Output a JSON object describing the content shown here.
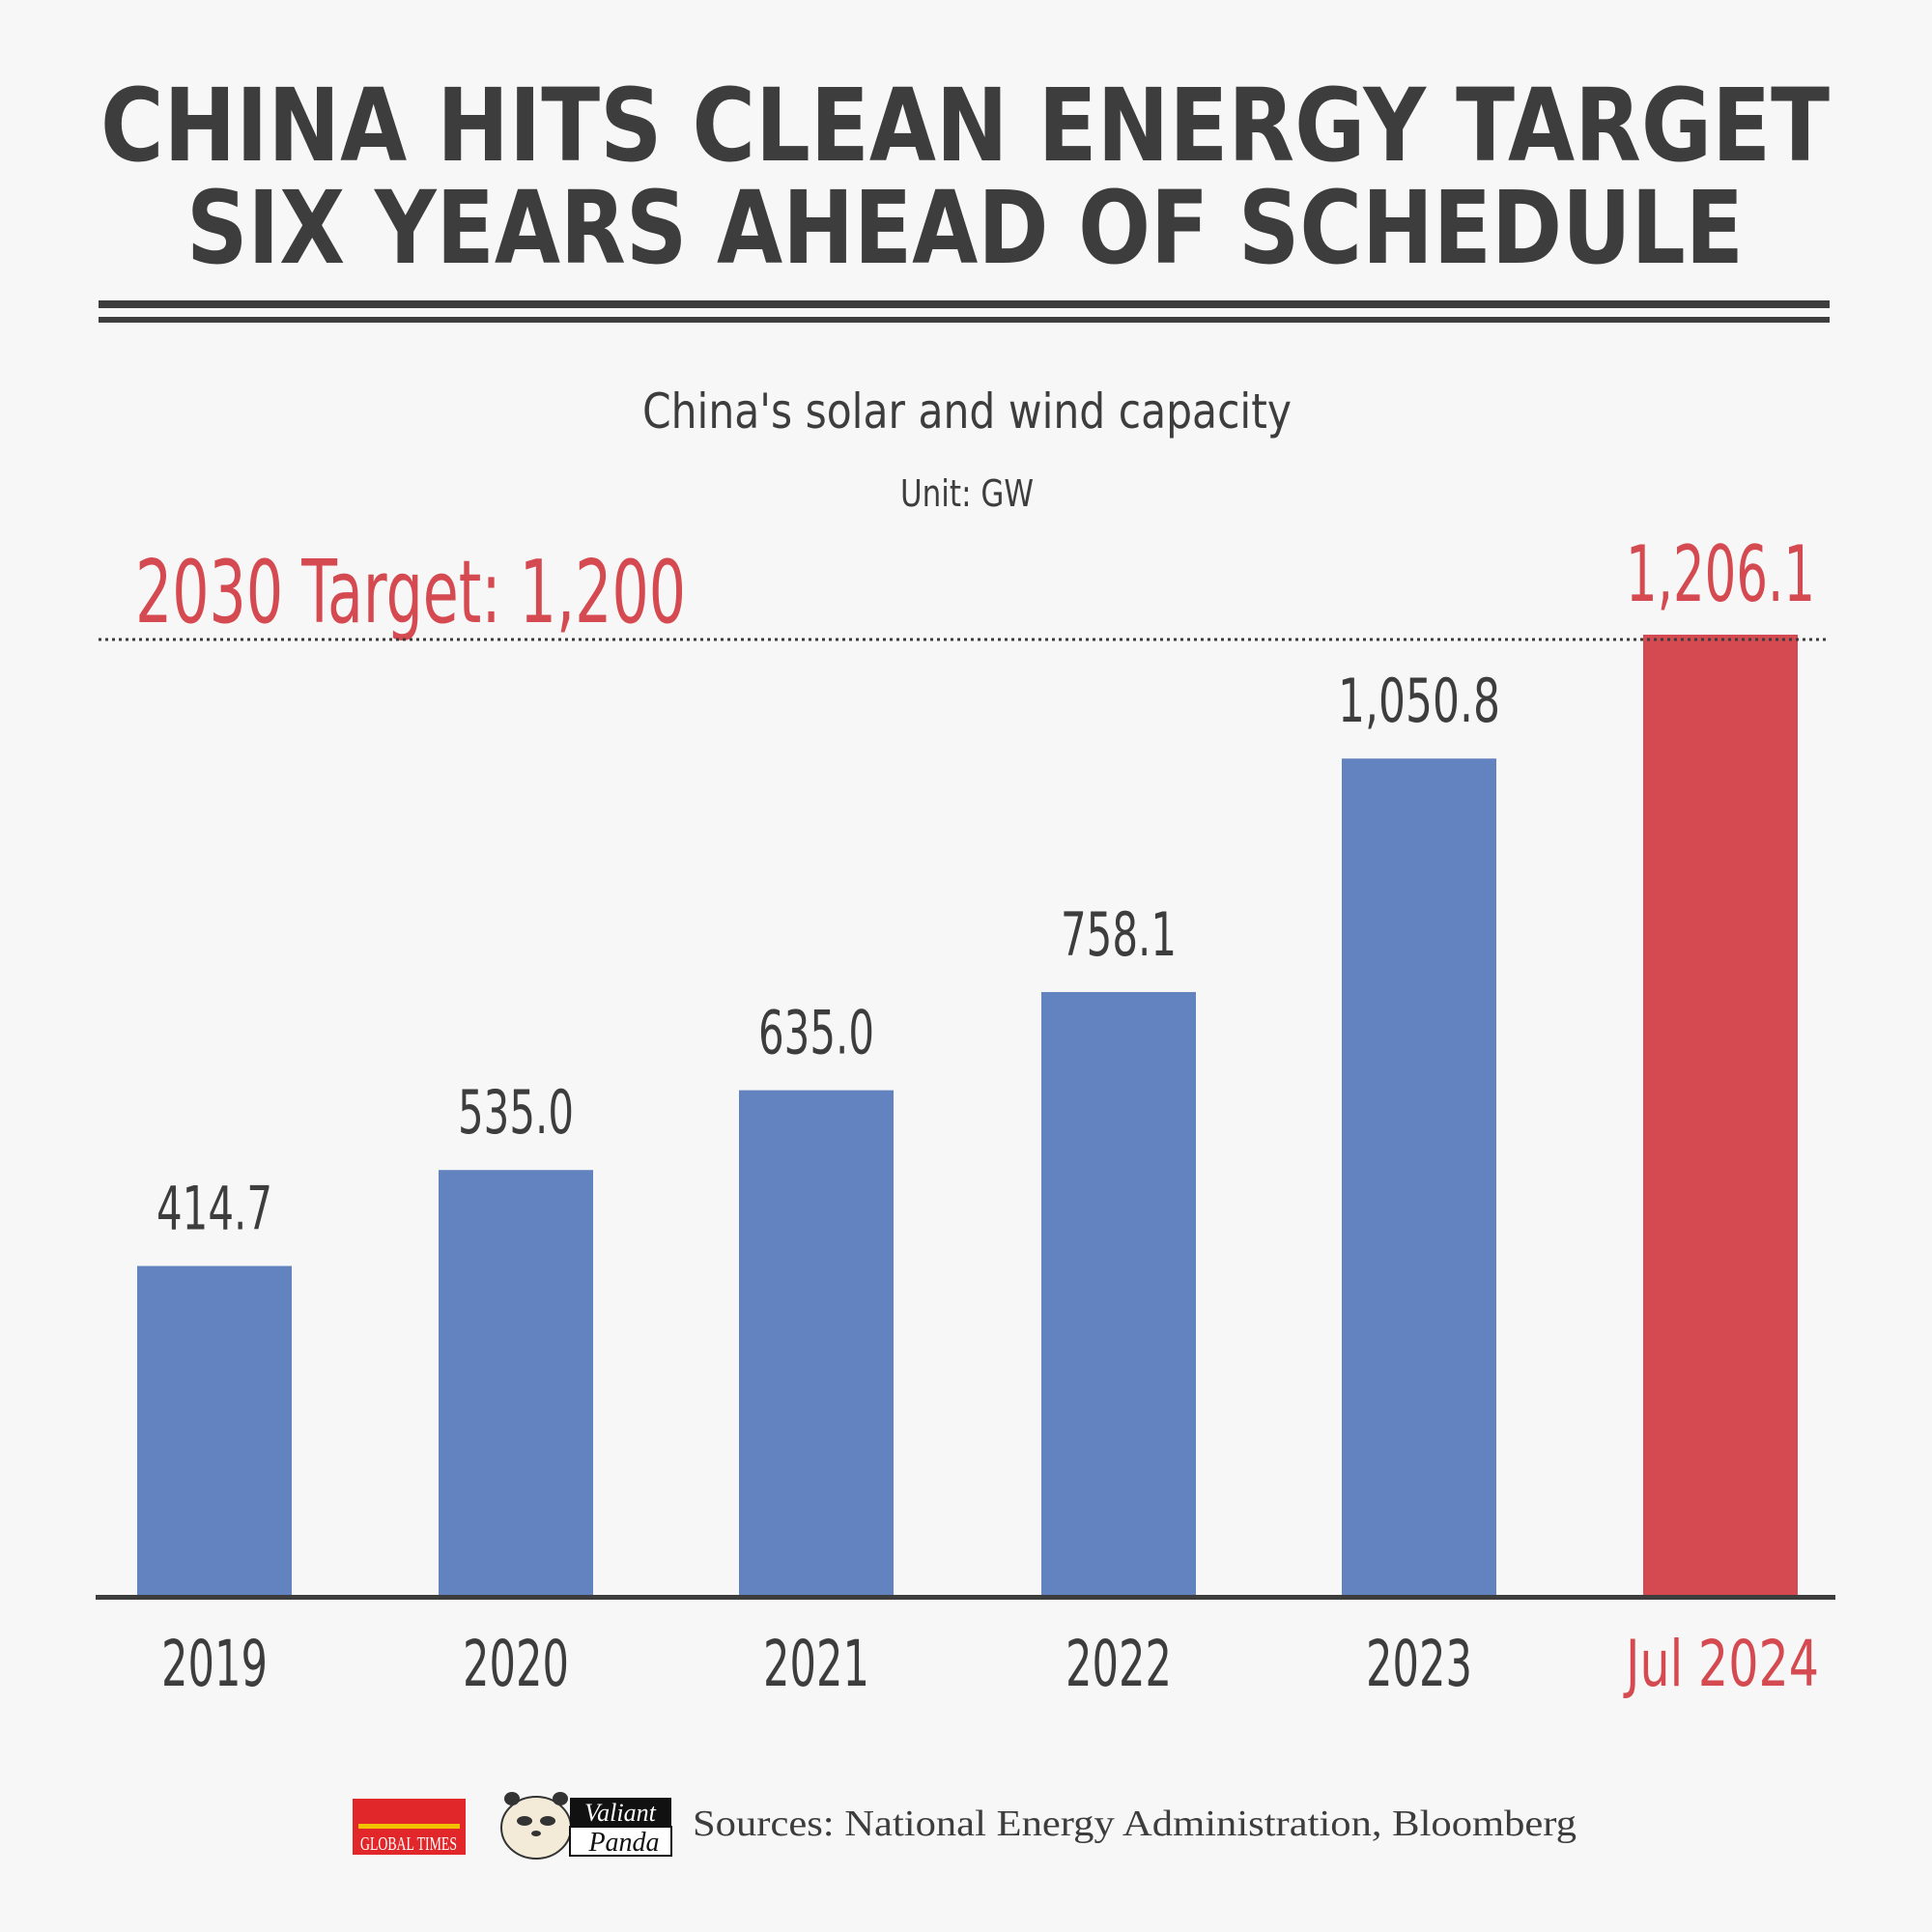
{
  "header": {
    "title_line1": "CHINA HITS CLEAN ENERGY TARGET",
    "title_line2": "SIX YEARS AHEAD OF SCHEDULE"
  },
  "colors": {
    "background": "#f7f7f7",
    "text": "#3d3d3d",
    "bar": "#6283bf",
    "highlight": "#d44a50"
  },
  "chart_data": {
    "type": "bar",
    "title": "China's solar and wind capacity",
    "subtitle": "Unit: GW",
    "categories": [
      "2019",
      "2020",
      "2021",
      "2022",
      "2023",
      "Jul 2024"
    ],
    "values": [
      414.7,
      535.0,
      635.0,
      758.1,
      1050.8,
      1206.1
    ],
    "value_labels": [
      "414.7",
      "535.0",
      "635.0",
      "758.1",
      "1,050.8",
      "1,206.1"
    ],
    "highlighted_category": "Jul 2024",
    "ylim": [
      0,
      1206.1
    ],
    "grid": false,
    "reference_line": {
      "value": 1200,
      "label": "2030 Target: 1,200",
      "style": "dotted"
    }
  },
  "footer": {
    "logo_global_times": "GLOBAL TIMES",
    "logo_valiant_panda_top": "Valiant",
    "logo_valiant_panda_bottom": "Panda",
    "sources": "Sources: National Energy Administration, Bloomberg"
  }
}
